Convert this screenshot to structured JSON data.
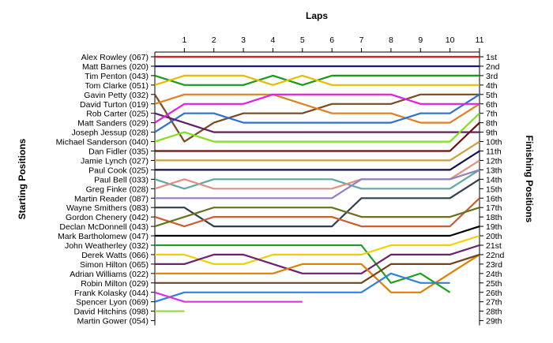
{
  "chart_data": {
    "type": "line",
    "title": "Laps",
    "ylabel_left": "Starting Positions",
    "ylabel_right": "Finishing Positions",
    "laps": [
      1,
      2,
      3,
      4,
      5,
      6,
      7,
      8,
      9,
      10,
      11
    ],
    "drivers": [
      "Alex Rowley (067)",
      "Matt Barnes (020)",
      "Tim Penton (043)",
      "Tom Clarke (051)",
      "Gavin Petty (032)",
      "David Turton (019)",
      "Rob Carter (025)",
      "Matt Sanders (029)",
      "Joseph Jessup (028)",
      "Michael Sanderson (040)",
      "Dan Fidler (035)",
      "Jamie Lynch (027)",
      "Paul Cook (025)",
      "Paul Bell (033)",
      "Greg Finke (028)",
      "Martin Reader (087)",
      "Wayne Smithers (083)",
      "Gordon Chenery (042)",
      "Declan McDonnell (043)",
      "Mark Bartholomew (047)",
      "John Weatherley (032)",
      "Derek Watts (066)",
      "Simon Hilton (065)",
      "Adrian Williams (022)",
      "Robin Milton (029)",
      "Frank Kolasky (044)",
      "Spencer Lyon (069)",
      "David Hitchins (098)",
      "Martin Gower (054)"
    ],
    "finishing_labels": [
      "1st",
      "2nd",
      "3rd",
      "4th",
      "5th",
      "6th",
      "7th",
      "8th",
      "9th",
      "10th",
      "11th",
      "12th",
      "13th",
      "14th",
      "15th",
      "16th",
      "17th",
      "18th",
      "19th",
      "20th",
      "21st",
      "22nd",
      "23rd",
      "24th",
      "25th",
      "26th",
      "27th",
      "28th",
      "29th"
    ],
    "series": [
      {
        "positions": [
          1,
          1,
          1,
          1,
          1,
          1,
          1,
          1,
          1,
          1,
          1,
          1
        ],
        "color": "#d42020"
      },
      {
        "positions": [
          2,
          2,
          2,
          2,
          2,
          2,
          2,
          2,
          2,
          2,
          2,
          2
        ],
        "color": "#1a1a80"
      },
      {
        "positions": [
          3,
          4,
          4,
          4,
          3,
          4,
          3,
          3,
          3,
          3,
          3,
          3
        ],
        "color": "#1a9a1a"
      },
      {
        "positions": [
          4,
          3,
          3,
          3,
          4,
          3,
          4,
          4,
          4,
          4,
          4,
          4
        ],
        "color": "#e0c000"
      },
      {
        "positions": [
          5,
          10,
          8,
          7,
          7,
          7,
          6,
          6,
          6,
          5,
          5,
          5
        ],
        "color": "#7a4a20"
      },
      {
        "positions": [
          6,
          5,
          5,
          5,
          5,
          6,
          7,
          7,
          7,
          8,
          8,
          6
        ],
        "color": "#e08020"
      },
      {
        "positions": [
          9,
          7,
          7,
          8,
          8,
          8,
          8,
          8,
          8,
          7,
          7,
          5
        ],
        "color": "#3070d0"
      },
      {
        "positions": [
          7,
          8,
          9,
          9,
          9,
          9,
          9,
          9,
          9,
          9,
          9,
          9
        ],
        "color": "#602060"
      },
      {
        "positions": [
          8,
          6,
          6,
          6,
          5,
          5,
          5,
          5,
          5,
          6,
          6,
          6
        ],
        "color": "#e020e0"
      },
      {
        "positions": [
          10,
          9,
          10,
          10,
          10,
          10,
          10,
          10,
          10,
          10,
          10,
          7
        ],
        "color": "#80e020"
      },
      {
        "positions": [
          11,
          11,
          11,
          11,
          11,
          11,
          11,
          11,
          11,
          11,
          11,
          8
        ],
        "color": "#6a1010"
      },
      {
        "positions": [
          12,
          12,
          12,
          12,
          12,
          12,
          12,
          12,
          12,
          12,
          12,
          10
        ],
        "color": "#c8a040"
      },
      {
        "positions": [
          13,
          13,
          13,
          13,
          13,
          13,
          13,
          13,
          13,
          13,
          13,
          11
        ],
        "color": "#101050"
      },
      {
        "positions": [
          14,
          15,
          14,
          14,
          14,
          14,
          14,
          15,
          15,
          15,
          15,
          13
        ],
        "color": "#60a8a0"
      },
      {
        "positions": [
          15,
          14,
          15,
          15,
          15,
          15,
          15,
          14,
          14,
          14,
          14,
          12
        ],
        "color": "#e09080"
      },
      {
        "positions": [
          16,
          16,
          16,
          16,
          16,
          16,
          16,
          14,
          14,
          14,
          14,
          13
        ],
        "color": "#9080c0"
      },
      {
        "positions": [
          17,
          17,
          19,
          19,
          19,
          19,
          19,
          16,
          16,
          16,
          16,
          14
        ],
        "color": "#304050"
      },
      {
        "positions": [
          18,
          19,
          18,
          18,
          18,
          18,
          18,
          19,
          19,
          19,
          19,
          16
        ],
        "color": "#c86030"
      },
      {
        "positions": [
          19,
          18,
          17,
          17,
          17,
          17,
          17,
          18,
          18,
          18,
          18,
          17
        ],
        "color": "#6a7020"
      },
      {
        "positions": [
          20,
          20,
          20,
          20,
          20,
          20,
          20,
          20,
          20,
          20,
          20,
          19
        ],
        "color": "#000000"
      },
      {
        "positions": [
          21,
          21,
          21,
          21,
          21,
          21,
          21,
          21,
          25,
          24,
          26,
          null
        ],
        "color": "#20a020"
      },
      {
        "positions": [
          22,
          22,
          23,
          23,
          22,
          22,
          22,
          22,
          21,
          21,
          21,
          20
        ],
        "color": "#f0d000"
      },
      {
        "positions": [
          23,
          23,
          22,
          22,
          23,
          24,
          24,
          24,
          22,
          22,
          22,
          21
        ],
        "color": "#702070"
      },
      {
        "positions": [
          24,
          24,
          24,
          24,
          24,
          23,
          23,
          23,
          26,
          26,
          24,
          22
        ],
        "color": "#e08000"
      },
      {
        "positions": [
          25,
          25,
          25,
          25,
          25,
          25,
          25,
          25,
          23,
          23,
          23,
          22
        ],
        "color": "#784018"
      },
      {
        "positions": [
          27,
          26,
          26,
          26,
          26,
          26,
          26,
          26,
          24,
          25,
          25,
          null
        ],
        "color": "#3080e0"
      },
      {
        "positions": [
          26,
          27,
          27,
          27,
          27,
          27,
          null,
          null,
          null,
          null,
          null,
          null
        ],
        "color": "#e030e0"
      },
      {
        "positions": [
          28,
          28,
          null,
          null,
          null,
          null,
          null,
          null,
          null,
          null,
          null,
          null
        ],
        "color": "#90e040"
      },
      {
        "positions": [
          null,
          null,
          null,
          null,
          null,
          null,
          null,
          null,
          null,
          null,
          null,
          null
        ],
        "color": "#000000"
      }
    ]
  }
}
